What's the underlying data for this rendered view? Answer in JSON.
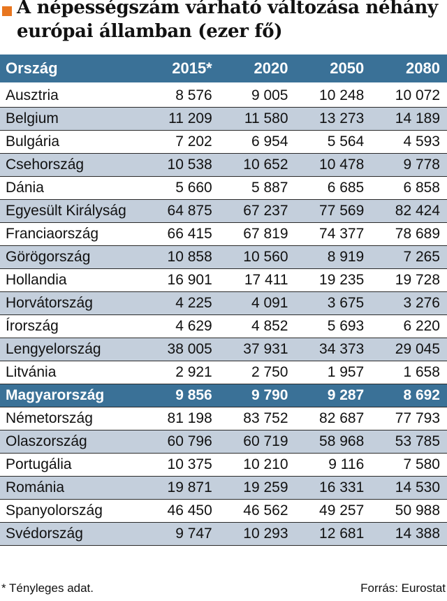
{
  "title": {
    "line1": "A népességszám várható változása néhány",
    "line2": "európai államban (ezer fő)",
    "marker_color": "#e8761f"
  },
  "table": {
    "headers": [
      "Ország",
      "2015*",
      "2020",
      "2050",
      "2080"
    ],
    "header_color": "#3a7197",
    "stripe_color": "#c4cfdc",
    "rows": [
      {
        "country": "Ausztria",
        "values": [
          "8 576",
          "9 005",
          "10 248",
          "10 072"
        ],
        "highlight": false
      },
      {
        "country": "Belgium",
        "values": [
          "11 209",
          "11 580",
          "13 273",
          "14 189"
        ],
        "highlight": false
      },
      {
        "country": "Bulgária",
        "values": [
          "7 202",
          "6 954",
          "5 564",
          "4 593"
        ],
        "highlight": false
      },
      {
        "country": "Csehország",
        "values": [
          "10 538",
          "10 652",
          "10 478",
          "9 778"
        ],
        "highlight": false
      },
      {
        "country": "Dánia",
        "values": [
          "5 660",
          "5 887",
          "6 685",
          "6 858"
        ],
        "highlight": false
      },
      {
        "country": "Egyesült Királyság",
        "values": [
          "64 875",
          "67 237",
          "77 569",
          "82 424"
        ],
        "highlight": false
      },
      {
        "country": "Franciaország",
        "values": [
          "66 415",
          "67 819",
          "74 377",
          "78 689"
        ],
        "highlight": false
      },
      {
        "country": "Görögország",
        "values": [
          "10 858",
          "10 560",
          "8 919",
          "7 265"
        ],
        "highlight": false
      },
      {
        "country": "Hollandia",
        "values": [
          "16 901",
          "17 411",
          "19 235",
          "19 728"
        ],
        "highlight": false
      },
      {
        "country": "Horvátország",
        "values": [
          "4 225",
          "4 091",
          "3 675",
          "3 276"
        ],
        "highlight": false
      },
      {
        "country": "Írország",
        "values": [
          "4 629",
          "4 852",
          "5 693",
          "6 220"
        ],
        "highlight": false
      },
      {
        "country": "Lengyelország",
        "values": [
          "38 005",
          "37 931",
          "34 373",
          "29 045"
        ],
        "highlight": false
      },
      {
        "country": "Litvánia",
        "values": [
          "2 921",
          "2 750",
          "1 957",
          "1 658"
        ],
        "highlight": false
      },
      {
        "country": "Magyarország",
        "values": [
          "9 856",
          "9 790",
          "9 287",
          "8 692"
        ],
        "highlight": true
      },
      {
        "country": "Németország",
        "values": [
          "81 198",
          "83 752",
          "82 687",
          "77 793"
        ],
        "highlight": false
      },
      {
        "country": "Olaszország",
        "values": [
          "60 796",
          "60 719",
          "58 968",
          "53 785"
        ],
        "highlight": false
      },
      {
        "country": "Portugália",
        "values": [
          "10 375",
          "10 210",
          "9 116",
          "7 580"
        ],
        "highlight": false
      },
      {
        "country": "Románia",
        "values": [
          "19 871",
          "19 259",
          "16 331",
          "14 530"
        ],
        "highlight": false
      },
      {
        "country": "Spanyolország",
        "values": [
          "46 450",
          "46 562",
          "49 257",
          "50 988"
        ],
        "highlight": false
      },
      {
        "country": "Svédország",
        "values": [
          "9 747",
          "10 293",
          "12 681",
          "14 388"
        ],
        "highlight": false
      }
    ]
  },
  "footer": {
    "footnote": "* Tényleges adat.",
    "source": "Forrás: Eurostat"
  }
}
